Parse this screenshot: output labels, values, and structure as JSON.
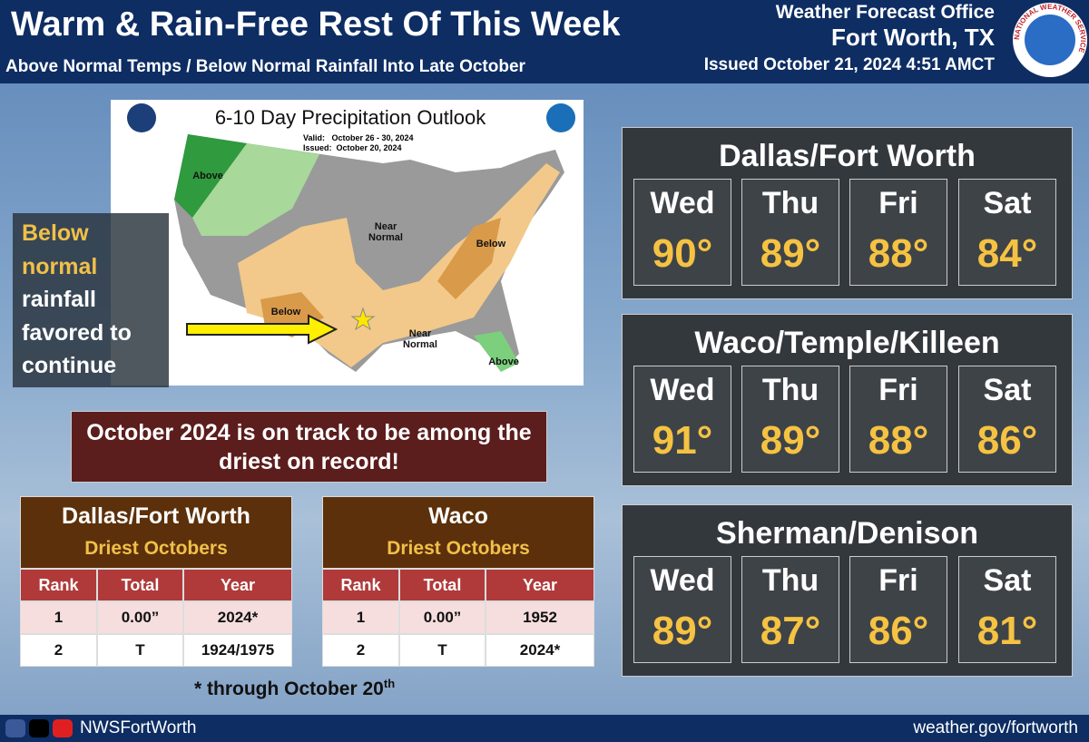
{
  "header": {
    "title": "Warm & Rain-Free Rest Of This Week",
    "subtitle": "Above Normal Temps / Below Normal Rainfall Into Late October",
    "office": "Weather Forecast Office",
    "location": "Fort Worth, TX",
    "issued": "Issued October 21, 2024 4:51 AMCT",
    "logo_text": "NATIONAL WEATHER SERVICE"
  },
  "map": {
    "title": "6-10 Day Precipitation Outlook",
    "valid": "Valid:   October 26 - 30, 2024",
    "issued": "Issued:  October 20, 2024",
    "labels": [
      "Above",
      "Near Normal",
      "Below",
      "Below",
      "Near Normal",
      "Above"
    ]
  },
  "callout": {
    "lines": [
      "Below",
      "normal",
      "rainfall",
      "favored to",
      "continue"
    ]
  },
  "banner": {
    "text": "October 2024 is on track to be among the driest on record!"
  },
  "tables": [
    {
      "city": "Dallas/Fort Worth",
      "subtitle": "Driest Octobers",
      "columns": [
        "Rank",
        "Total",
        "Year"
      ],
      "rows": [
        [
          "1",
          "0.00”",
          "2024*"
        ],
        [
          "2",
          "T",
          "1924/1975"
        ]
      ]
    },
    {
      "city": "Waco",
      "subtitle": "Driest Octobers",
      "columns": [
        "Rank",
        "Total",
        "Year"
      ],
      "rows": [
        [
          "1",
          "0.00”",
          "1952"
        ],
        [
          "2",
          "T",
          "2024*"
        ]
      ]
    }
  ],
  "footnote": {
    "text": "* through October 20",
    "suffix": "th"
  },
  "forecasts": [
    {
      "city": "Dallas/Fort Worth",
      "days": [
        {
          "day": "Wed",
          "temp": "90°"
        },
        {
          "day": "Thu",
          "temp": "89°"
        },
        {
          "day": "Fri",
          "temp": "88°"
        },
        {
          "day": "Sat",
          "temp": "84°"
        }
      ]
    },
    {
      "city": "Waco/Temple/Killeen",
      "days": [
        {
          "day": "Wed",
          "temp": "91°"
        },
        {
          "day": "Thu",
          "temp": "89°"
        },
        {
          "day": "Fri",
          "temp": "88°"
        },
        {
          "day": "Sat",
          "temp": "86°"
        }
      ]
    },
    {
      "city": "Sherman/Denison",
      "days": [
        {
          "day": "Wed",
          "temp": "89°"
        },
        {
          "day": "Thu",
          "temp": "87°"
        },
        {
          "day": "Fri",
          "temp": "86°"
        },
        {
          "day": "Sat",
          "temp": "81°"
        }
      ]
    }
  ],
  "footer": {
    "handle": "NWSFortWorth",
    "url": "weather.gov/fortworth"
  }
}
